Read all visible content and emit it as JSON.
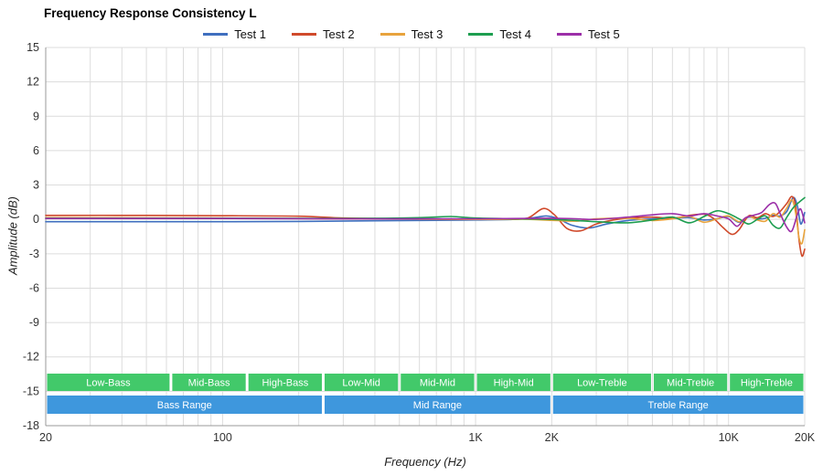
{
  "chart_data": {
    "type": "line",
    "title": "Frequency Response Consistency L",
    "xlabel": "Frequency (Hz)",
    "ylabel": "Amplitude (dB)",
    "x_scale": "log",
    "x_range": [
      20,
      20000
    ],
    "ylim": [
      -18,
      15
    ],
    "y_ticks": [
      15,
      12,
      9,
      6,
      3,
      0,
      -3,
      -6,
      -9,
      -12,
      -15,
      -18
    ],
    "x_tick_labels": [
      {
        "value": 20,
        "label": "20"
      },
      {
        "value": 100,
        "label": "100"
      },
      {
        "value": 1000,
        "label": "1K"
      },
      {
        "value": 2000,
        "label": "2K"
      },
      {
        "value": 10000,
        "label": "10K"
      },
      {
        "value": 20000,
        "label": "20K"
      }
    ],
    "grid_color": "#dcdcdc",
    "axis_color": "#999999",
    "series": [
      {
        "name": "Test 1",
        "color": "#3f6fbf",
        "points": [
          [
            20,
            -0.2
          ],
          [
            50,
            -0.2
          ],
          [
            100,
            -0.2
          ],
          [
            200,
            -0.18
          ],
          [
            400,
            -0.12
          ],
          [
            700,
            -0.08
          ],
          [
            1000,
            -0.05
          ],
          [
            1400,
            0
          ],
          [
            1700,
            0.15
          ],
          [
            1900,
            0.3
          ],
          [
            2100,
            0.1
          ],
          [
            2400,
            -0.5
          ],
          [
            2800,
            -0.75
          ],
          [
            3300,
            -0.4
          ],
          [
            4000,
            -0.1
          ],
          [
            5000,
            0.05
          ],
          [
            6000,
            0.1
          ],
          [
            7000,
            0.15
          ],
          [
            8000,
            -0.05
          ],
          [
            9000,
            0.05
          ],
          [
            10000,
            0.25
          ],
          [
            11000,
            -0.25
          ],
          [
            12000,
            0.2
          ],
          [
            13000,
            0.05
          ],
          [
            14000,
            0.1
          ],
          [
            15000,
            0.35
          ],
          [
            16000,
            0.3
          ],
          [
            17000,
            0.7
          ],
          [
            18000,
            1.9
          ],
          [
            18700,
            1.2
          ],
          [
            19300,
            -0.4
          ],
          [
            20000,
            0.6
          ]
        ]
      },
      {
        "name": "Test 2",
        "color": "#d04a2b",
        "points": [
          [
            20,
            0.35
          ],
          [
            50,
            0.35
          ],
          [
            100,
            0.32
          ],
          [
            200,
            0.28
          ],
          [
            300,
            0.12
          ],
          [
            500,
            0.06
          ],
          [
            800,
            0.02
          ],
          [
            1000,
            0
          ],
          [
            1300,
            0.02
          ],
          [
            1600,
            0.1
          ],
          [
            1850,
            0.95
          ],
          [
            2050,
            0.4
          ],
          [
            2300,
            -0.8
          ],
          [
            2600,
            -1.0
          ],
          [
            3000,
            -0.4
          ],
          [
            3500,
            -0.05
          ],
          [
            4000,
            0.1
          ],
          [
            5000,
            0.2
          ],
          [
            6000,
            0.1
          ],
          [
            7000,
            0.35
          ],
          [
            8000,
            0.45
          ],
          [
            8700,
            0.1
          ],
          [
            9500,
            -0.7
          ],
          [
            10300,
            -1.3
          ],
          [
            11000,
            -0.9
          ],
          [
            12000,
            0.3
          ],
          [
            13000,
            0.15
          ],
          [
            14000,
            0.5
          ],
          [
            15000,
            0.25
          ],
          [
            16000,
            0.7
          ],
          [
            17000,
            1.4
          ],
          [
            17800,
            2.0
          ],
          [
            18400,
            1.2
          ],
          [
            19000,
            -1.8
          ],
          [
            19500,
            -3.2
          ],
          [
            20000,
            -2.6
          ]
        ]
      },
      {
        "name": "Test 3",
        "color": "#e8a33d",
        "points": [
          [
            20,
            0.15
          ],
          [
            100,
            0.12
          ],
          [
            300,
            0.05
          ],
          [
            600,
            0.02
          ],
          [
            1000,
            0
          ],
          [
            1500,
            0.02
          ],
          [
            2000,
            -0.08
          ],
          [
            2500,
            -0.15
          ],
          [
            3000,
            0.05
          ],
          [
            4000,
            0.1
          ],
          [
            5000,
            -0.1
          ],
          [
            6000,
            0.05
          ],
          [
            7000,
            0.25
          ],
          [
            8000,
            -0.25
          ],
          [
            9000,
            0.05
          ],
          [
            10000,
            0.3
          ],
          [
            11000,
            -0.2
          ],
          [
            12000,
            0.25
          ],
          [
            13000,
            -0.05
          ],
          [
            14000,
            -0.15
          ],
          [
            15000,
            0.5
          ],
          [
            16000,
            0.2
          ],
          [
            17000,
            1.0
          ],
          [
            17800,
            1.7
          ],
          [
            18400,
            0.6
          ],
          [
            19000,
            -1.6
          ],
          [
            19500,
            -2.1
          ],
          [
            20000,
            -0.9
          ]
        ]
      },
      {
        "name": "Test 4",
        "color": "#1d9e50",
        "points": [
          [
            20,
            0.1
          ],
          [
            100,
            0.1
          ],
          [
            300,
            0.08
          ],
          [
            600,
            0.15
          ],
          [
            800,
            0.25
          ],
          [
            1000,
            0.12
          ],
          [
            1500,
            0.05
          ],
          [
            2000,
            0
          ],
          [
            2500,
            -0.1
          ],
          [
            3000,
            -0.2
          ],
          [
            4000,
            -0.3
          ],
          [
            5000,
            -0.05
          ],
          [
            6000,
            0.2
          ],
          [
            7000,
            -0.3
          ],
          [
            8000,
            0.25
          ],
          [
            9000,
            0.75
          ],
          [
            10000,
            0.5
          ],
          [
            11000,
            0.05
          ],
          [
            12000,
            -0.4
          ],
          [
            13000,
            0
          ],
          [
            14000,
            0.3
          ],
          [
            15000,
            -0.5
          ],
          [
            16000,
            -0.75
          ],
          [
            17000,
            0.2
          ],
          [
            18000,
            1.0
          ],
          [
            19000,
            1.5
          ],
          [
            20000,
            1.9
          ]
        ]
      },
      {
        "name": "Test 5",
        "color": "#9c2fa8",
        "points": [
          [
            20,
            0.08
          ],
          [
            100,
            0.08
          ],
          [
            300,
            0.05
          ],
          [
            600,
            0.05
          ],
          [
            1000,
            0.05
          ],
          [
            1500,
            0.08
          ],
          [
            2000,
            0.1
          ],
          [
            2500,
            0.05
          ],
          [
            3000,
            0
          ],
          [
            4000,
            0.2
          ],
          [
            5000,
            0.4
          ],
          [
            6000,
            0.5
          ],
          [
            7000,
            0.3
          ],
          [
            8000,
            0.5
          ],
          [
            9000,
            0.3
          ],
          [
            10000,
            0.05
          ],
          [
            10800,
            -0.6
          ],
          [
            11600,
            0.1
          ],
          [
            12500,
            0.35
          ],
          [
            13500,
            0.6
          ],
          [
            14500,
            1.3
          ],
          [
            15300,
            1.4
          ],
          [
            16000,
            0.5
          ],
          [
            17000,
            -0.7
          ],
          [
            17800,
            -1.0
          ],
          [
            18700,
            0.4
          ],
          [
            19300,
            0.9
          ],
          [
            20000,
            -0.3
          ]
        ]
      }
    ],
    "bands": {
      "sub_color": "#42c96a",
      "main_color": "#3e97dd",
      "sub": [
        {
          "label": "Low-Bass",
          "from": 20,
          "to": 62.5
        },
        {
          "label": "Mid-Bass",
          "from": 62.5,
          "to": 125
        },
        {
          "label": "High-Bass",
          "from": 125,
          "to": 250
        },
        {
          "label": "Low-Mid",
          "from": 250,
          "to": 500
        },
        {
          "label": "Mid-Mid",
          "from": 500,
          "to": 1000
        },
        {
          "label": "High-Mid",
          "from": 1000,
          "to": 2000
        },
        {
          "label": "Low-Treble",
          "from": 2000,
          "to": 5000
        },
        {
          "label": "Mid-Treble",
          "from": 5000,
          "to": 10000
        },
        {
          "label": "High-Treble",
          "from": 10000,
          "to": 20000
        }
      ],
      "main": [
        {
          "label": "Bass Range",
          "from": 20,
          "to": 250
        },
        {
          "label": "Mid Range",
          "from": 250,
          "to": 2000
        },
        {
          "label": "Treble Range",
          "from": 2000,
          "to": 20000
        }
      ]
    }
  }
}
